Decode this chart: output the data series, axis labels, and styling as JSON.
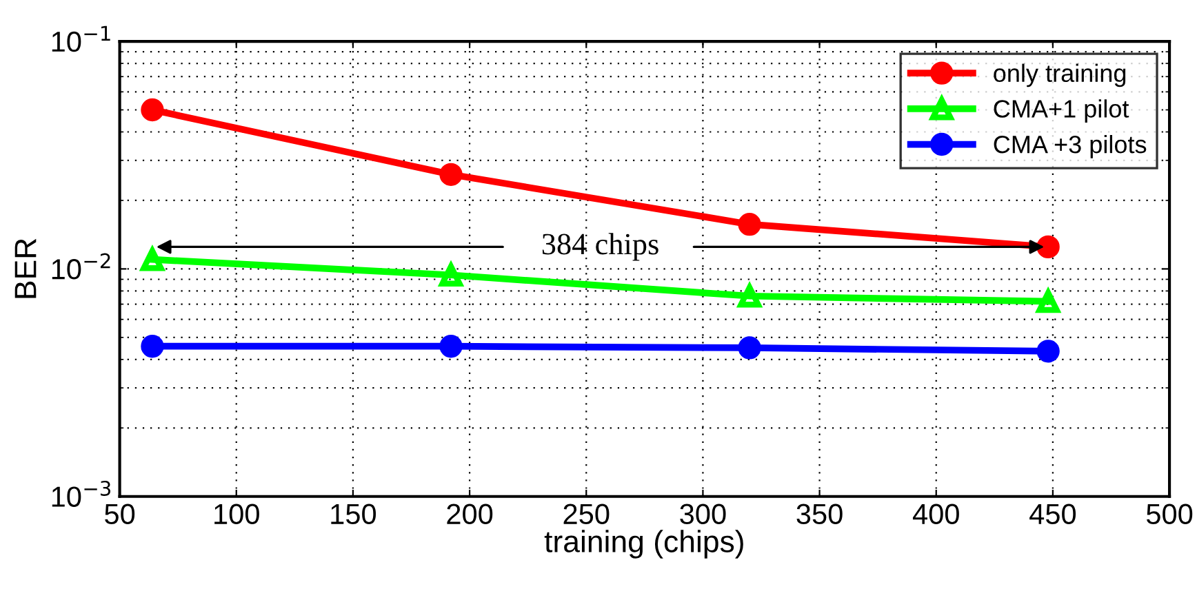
{
  "chart_data": {
    "type": "line",
    "xlabel": "training (chips)",
    "ylabel": "BER",
    "log": "y",
    "x": [
      64,
      192,
      320,
      448
    ],
    "series": [
      {
        "name": "only training",
        "color": "#ff0000",
        "marker": "circle",
        "values": [
          0.05,
          0.026,
          0.0157,
          0.0125
        ]
      },
      {
        "name": "CMA+1 pilot",
        "color": "#00ff00",
        "marker": "triangle",
        "values": [
          0.011,
          0.0094,
          0.0076,
          0.0072
        ]
      },
      {
        "name": "CMA +3 pilots",
        "color": "#0000ff",
        "marker": "circle",
        "values": [
          0.00457,
          0.00457,
          0.0045,
          0.00435
        ]
      }
    ],
    "xlim": [
      50,
      500
    ],
    "xticks": [
      50,
      100,
      150,
      200,
      250,
      300,
      350,
      400,
      450,
      500
    ],
    "ylim": [
      0.001,
      0.1
    ],
    "yticks": [
      {
        "value": 0.001,
        "label": "10$^{−3}$"
      },
      {
        "value": 0.01,
        "label": "10$^{−2}$"
      },
      {
        "value": 0.1,
        "label": "10$^{−1}$"
      }
    ],
    "annotations": [
      {
        "text": "384 chips",
        "x": 448,
        "y": 0.0125
      }
    ],
    "grid": true,
    "legend": "top right",
    "line_style": "solid"
  }
}
